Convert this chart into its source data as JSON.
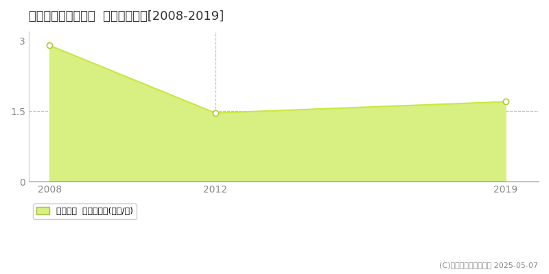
{
  "title": "宇城市小川町北部田  土地価格推移[2008-2019]",
  "years": [
    2008,
    2012,
    2019
  ],
  "values": [
    2.9,
    1.46,
    1.7
  ],
  "line_color": "#c8e840",
  "fill_color": "#d8ef82",
  "marker_color": "white",
  "marker_edge_color": "#b0c830",
  "background_color": "#ffffff",
  "yticks": [
    0,
    1.5,
    3
  ],
  "ylim": [
    0,
    3.2
  ],
  "xlim": [
    2007.5,
    2019.8
  ],
  "vline_x": 2012,
  "vline_color": "#bbbbbb",
  "hline_y": 1.5,
  "hline_color": "#bbbbbb",
  "legend_label": "土地価格  平均坪単価(万円/坪)",
  "copyright_text": "(C)土地価格ドットコム 2025-05-07",
  "title_fontsize": 13,
  "legend_fontsize": 9,
  "tick_fontsize": 10
}
